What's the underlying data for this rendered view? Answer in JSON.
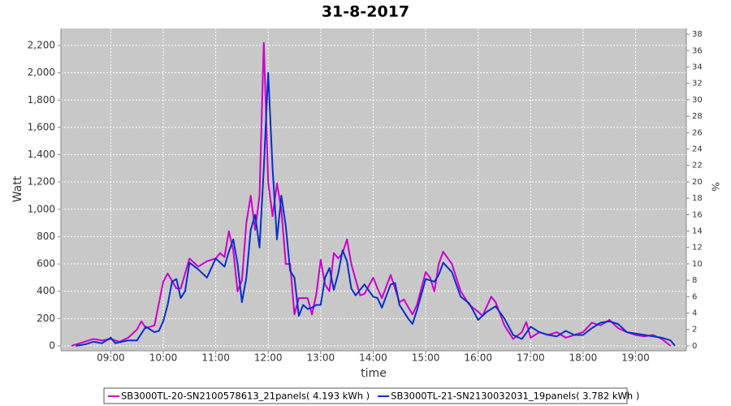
{
  "chart_data": {
    "type": "line",
    "title": "31-8-2017",
    "x_label": "time",
    "y_label": "Watt",
    "y2_label": "%",
    "xlim": [
      "08:03",
      "19:58"
    ],
    "xticks": [
      "09:00",
      "10:00",
      "11:00",
      "12:00",
      "13:00",
      "14:00",
      "15:00",
      "16:00",
      "17:00",
      "18:00",
      "19:00"
    ],
    "ylim": [
      -36,
      2325
    ],
    "yticks": [
      0,
      200,
      400,
      600,
      800,
      {
        "value": 1000,
        "label": "1,000"
      },
      {
        "value": 1200,
        "label": "1,200"
      },
      {
        "value": 1400,
        "label": "1,400"
      },
      {
        "value": 1600,
        "label": "1,600"
      },
      {
        "value": 1800,
        "label": "1,800"
      },
      {
        "value": 2000,
        "label": "2,000"
      },
      {
        "value": 2200,
        "label": "2,200"
      }
    ],
    "y2lim": [
      -0.6,
      38.7
    ],
    "y2ticks": [
      0,
      2,
      4,
      6,
      8,
      10,
      12,
      14,
      16,
      18,
      20,
      22,
      24,
      26,
      28,
      30,
      32,
      34,
      36,
      38
    ],
    "grid": true,
    "legend": "bottom",
    "series": [
      {
        "name": "SB3000TL-20-SN2100578613_21panels( 4.193 kWh )",
        "color": "#cc00cc",
        "x": [
          "08:15",
          "08:30",
          "08:40",
          "08:50",
          "09:00",
          "09:10",
          "09:20",
          "09:30",
          "09:35",
          "09:40",
          "09:50",
          "10:00",
          "10:05",
          "10:15",
          "10:20",
          "10:30",
          "10:40",
          "10:50",
          "11:00",
          "11:05",
          "11:10",
          "11:15",
          "11:20",
          "11:25",
          "11:30",
          "11:35",
          "11:40",
          "11:45",
          "11:50",
          "11:55",
          "12:00",
          "12:05",
          "12:10",
          "12:15",
          "12:20",
          "12:25",
          "12:30",
          "12:35",
          "12:45",
          "12:50",
          "12:55",
          "13:00",
          "13:05",
          "13:10",
          "13:15",
          "13:20",
          "13:25",
          "13:30",
          "13:35",
          "13:45",
          "13:50",
          "14:00",
          "14:05",
          "14:10",
          "14:20",
          "14:30",
          "14:35",
          "14:45",
          "14:50",
          "15:00",
          "15:05",
          "15:10",
          "15:15",
          "15:20",
          "15:30",
          "15:40",
          "15:50",
          "16:00",
          "16:05",
          "16:15",
          "16:20",
          "16:30",
          "16:40",
          "16:50",
          "16:55",
          "17:00",
          "17:10",
          "17:20",
          "17:30",
          "17:40",
          "17:50",
          "18:00",
          "18:10",
          "18:20",
          "18:30",
          "18:40",
          "18:50",
          "19:00",
          "19:10",
          "19:20",
          "19:30",
          "19:40"
        ],
        "values": [
          0,
          30,
          50,
          40,
          50,
          30,
          60,
          120,
          180,
          130,
          150,
          470,
          530,
          420,
          420,
          640,
          580,
          620,
          640,
          680,
          650,
          840,
          700,
          400,
          480,
          900,
          1100,
          850,
          1100,
          2220,
          1200,
          950,
          1190,
          1000,
          600,
          600,
          230,
          350,
          350,
          230,
          380,
          630,
          450,
          400,
          680,
          640,
          680,
          780,
          600,
          370,
          380,
          500,
          420,
          350,
          520,
          320,
          340,
          230,
          300,
          540,
          500,
          400,
          600,
          690,
          600,
          400,
          300,
          250,
          220,
          360,
          320,
          150,
          50,
          100,
          175,
          60,
          100,
          80,
          100,
          60,
          80,
          100,
          170,
          150,
          190,
          130,
          100,
          80,
          70,
          80,
          50,
          0
        ]
      },
      {
        "name": "SB3000TL-21-SN2130032031_19panels( 3.782 kWh )",
        "color": "#0a2fc8",
        "x": [
          "08:20",
          "08:30",
          "08:40",
          "08:50",
          "09:00",
          "09:05",
          "09:20",
          "09:30",
          "09:40",
          "09:50",
          "09:55",
          "10:00",
          "10:05",
          "10:10",
          "10:15",
          "10:20",
          "10:25",
          "10:30",
          "10:40",
          "10:50",
          "11:00",
          "11:10",
          "11:15",
          "11:20",
          "11:25",
          "11:30",
          "11:35",
          "11:40",
          "11:45",
          "11:50",
          "11:55",
          "12:00",
          "12:05",
          "12:10",
          "12:15",
          "12:20",
          "12:25",
          "12:30",
          "12:35",
          "12:40",
          "12:45",
          "12:50",
          "12:55",
          "13:00",
          "13:05",
          "13:10",
          "13:15",
          "13:20",
          "13:25",
          "13:30",
          "13:35",
          "13:40",
          "13:50",
          "14:00",
          "14:05",
          "14:10",
          "14:20",
          "14:25",
          "14:30",
          "14:40",
          "14:45",
          "14:50",
          "15:00",
          "15:10",
          "15:15",
          "15:20",
          "15:30",
          "15:40",
          "15:50",
          "16:00",
          "16:10",
          "16:20",
          "16:30",
          "16:40",
          "16:50",
          "17:00",
          "17:10",
          "17:20",
          "17:30",
          "17:40",
          "17:50",
          "18:00",
          "18:10",
          "18:20",
          "18:30",
          "18:40",
          "18:50",
          "19:00",
          "19:10",
          "19:20",
          "19:30",
          "19:40",
          "19:45"
        ],
        "values": [
          0,
          10,
          30,
          20,
          60,
          20,
          40,
          40,
          140,
          100,
          110,
          180,
          300,
          470,
          490,
          350,
          400,
          610,
          560,
          500,
          640,
          580,
          690,
          780,
          600,
          320,
          500,
          850,
          960,
          720,
          1300,
          2000,
          1300,
          780,
          1100,
          880,
          550,
          500,
          220,
          300,
          270,
          280,
          300,
          300,
          500,
          570,
          410,
          530,
          700,
          620,
          420,
          370,
          450,
          360,
          350,
          280,
          450,
          460,
          300,
          200,
          160,
          260,
          490,
          470,
          520,
          610,
          540,
          360,
          310,
          190,
          250,
          290,
          200,
          80,
          50,
          140,
          100,
          80,
          70,
          110,
          80,
          80,
          130,
          170,
          180,
          160,
          100,
          90,
          80,
          70,
          60,
          40,
          0
        ]
      }
    ]
  }
}
